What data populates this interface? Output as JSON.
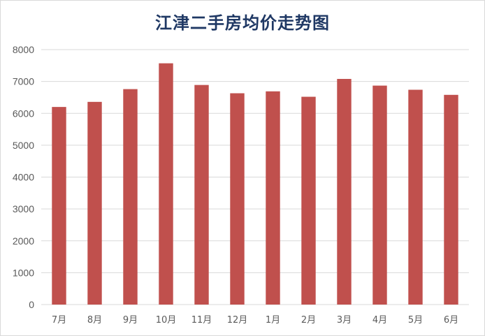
{
  "chart_data": {
    "type": "bar",
    "title": "江津二手房均价走势图",
    "xlabel": "",
    "ylabel": "",
    "categories": [
      "7月",
      "8月",
      "9月",
      "10月",
      "11月",
      "12月",
      "1月",
      "2月",
      "3月",
      "4月",
      "5月",
      "6月"
    ],
    "values": [
      6200,
      6360,
      6760,
      7570,
      6890,
      6630,
      6690,
      6520,
      7080,
      6870,
      6740,
      6580
    ],
    "ylim": [
      0,
      8000
    ],
    "yticks": [
      0,
      1000,
      2000,
      3000,
      4000,
      5000,
      6000,
      7000,
      8000
    ],
    "grid": true,
    "legend": "none",
    "bar_color": "#c0504d",
    "grid_color": "#d9d9d9",
    "title_color": "#1f3864"
  }
}
